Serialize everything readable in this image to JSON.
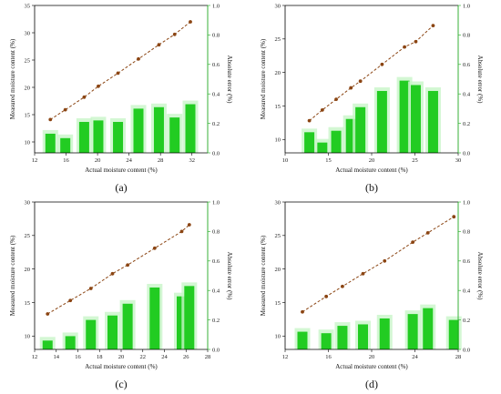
{
  "colors": {
    "bar": "#22cc22",
    "bar_shadow": "#c8f5c8",
    "line": "#8b4513",
    "right_axis": "#22aa22",
    "left_axis": "#000000"
  },
  "chart_data": [
    {
      "type": "bar+line",
      "panel_label": "(a)",
      "xlabel": "Actual moisture content (%)",
      "ylabel": "Measured moisture content (%)",
      "y2label": "Absolute error (%)",
      "xlim": [
        12,
        34
      ],
      "xticks": [
        12,
        16,
        20,
        24,
        28,
        32
      ],
      "ylim": [
        8,
        35
      ],
      "yticks": [
        10,
        15,
        20,
        25,
        30,
        35
      ],
      "y2lim": [
        0,
        1.0
      ],
      "y2ticks": [
        0.0,
        0.2,
        0.4,
        0.6,
        0.8,
        1.0
      ],
      "x": [
        14.0,
        15.9,
        18.3,
        20.1,
        22.6,
        25.2,
        27.8,
        29.8,
        31.8
      ],
      "measured": [
        14.1,
        15.9,
        18.2,
        20.2,
        22.6,
        25.2,
        27.8,
        29.7,
        32.0
      ],
      "abs_error": [
        0.13,
        0.1,
        0.21,
        0.22,
        0.21,
        0.3,
        0.31,
        0.24,
        0.33
      ]
    },
    {
      "type": "bar+line",
      "panel_label": "(b)",
      "xlabel": "Actual moisture content (%)",
      "ylabel": "Measured moisture content (%)",
      "y2label": "Absolute error (%)",
      "xlim": [
        10,
        30
      ],
      "xticks": [
        10,
        15,
        20,
        25,
        30
      ],
      "ylim": [
        8,
        30
      ],
      "yticks": [
        10,
        15,
        20,
        25,
        30
      ],
      "y2lim": [
        0,
        1.0
      ],
      "y2ticks": [
        0.0,
        0.2,
        0.4,
        0.6,
        0.8,
        1.0
      ],
      "x": [
        12.8,
        14.3,
        15.9,
        17.6,
        18.7,
        21.2,
        23.8,
        25.1,
        27.1
      ],
      "measured": [
        12.8,
        14.4,
        16.0,
        17.7,
        18.7,
        21.2,
        23.8,
        24.6,
        27.0
      ],
      "abs_error": [
        0.14,
        0.07,
        0.15,
        0.23,
        0.31,
        0.42,
        0.49,
        0.46,
        0.42
      ]
    },
    {
      "type": "bar+line",
      "panel_label": "(c)",
      "xlabel": "Actual moisture content (%)",
      "ylabel": "Measured moisture content (%)",
      "y2label": "Absolute error (%)",
      "xlim": [
        12,
        28
      ],
      "xticks": [
        12,
        14,
        16,
        18,
        20,
        22,
        24,
        26,
        28
      ],
      "ylim": [
        8,
        30
      ],
      "yticks": [
        10,
        15,
        20,
        25,
        30
      ],
      "y2lim": [
        0,
        1.0
      ],
      "y2ticks": [
        0.0,
        0.2,
        0.4,
        0.6,
        0.8,
        1.0
      ],
      "x": [
        13.2,
        15.3,
        17.2,
        19.2,
        20.6,
        23.1,
        25.6,
        26.3
      ],
      "measured": [
        13.3,
        15.3,
        17.1,
        19.3,
        20.6,
        23.1,
        25.6,
        26.6
      ],
      "abs_error": [
        0.06,
        0.09,
        0.2,
        0.23,
        0.31,
        0.42,
        0.36,
        0.43
      ]
    },
    {
      "type": "bar+line",
      "panel_label": "(d)",
      "xlabel": "Actual moisture content (%)",
      "ylabel": "Measured moisture content (%)",
      "y2label": "Absolute error (%)",
      "xlim": [
        12,
        28
      ],
      "xticks": [
        12,
        16,
        20,
        24,
        28
      ],
      "ylim": [
        8,
        30
      ],
      "yticks": [
        10,
        15,
        20,
        25,
        30
      ],
      "y2lim": [
        0,
        1.0
      ],
      "y2ticks": [
        0.0,
        0.2,
        0.4,
        0.6,
        0.8,
        1.0
      ],
      "x": [
        13.6,
        15.8,
        17.3,
        19.2,
        21.2,
        23.8,
        25.2,
        27.6
      ],
      "measured": [
        13.6,
        15.9,
        17.4,
        19.3,
        21.2,
        24.0,
        25.4,
        27.8
      ],
      "abs_error": [
        0.12,
        0.11,
        0.16,
        0.17,
        0.21,
        0.24,
        0.28,
        0.2
      ]
    }
  ]
}
